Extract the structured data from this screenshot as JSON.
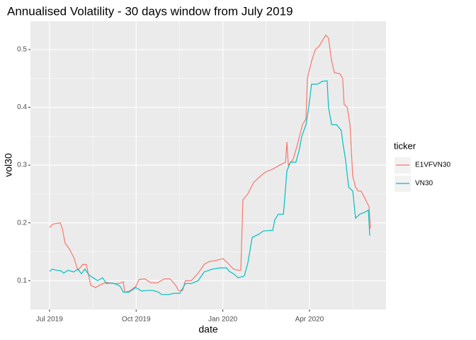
{
  "chart_data": {
    "type": "line",
    "title": "Annualised Volatility - 30 days window from July 2019",
    "x_label": "date",
    "y_label": "vol30",
    "legend_title": "ticker",
    "legend": "right",
    "grid": true,
    "xlim": [
      2019.445,
      2020.471
    ],
    "xticks": [
      {
        "value": 2019.5,
        "label": "Jul 2019"
      },
      {
        "value": 2019.75,
        "label": "Oct 2019"
      },
      {
        "value": 2020.0,
        "label": "Jan 2020"
      },
      {
        "value": 2020.25,
        "label": "Apr 2020"
      }
    ],
    "ylim": [
      0.05,
      0.549
    ],
    "yticks": [
      0.1,
      0.2,
      0.3,
      0.4,
      0.5
    ],
    "series": [
      {
        "name": "E1VFVN30",
        "color": "#F8766D",
        "x": [
          2019.5,
          2019.51,
          2019.531,
          2019.537,
          2019.545,
          2019.557,
          2019.57,
          2019.582,
          2019.596,
          2019.606,
          2019.619,
          2019.633,
          2019.647,
          2019.664,
          2019.684,
          2019.7,
          2019.713,
          2019.717,
          2019.731,
          2019.749,
          2019.758,
          2019.776,
          2019.79,
          2019.811,
          2019.831,
          2019.848,
          2019.864,
          2019.872,
          2019.884,
          2019.892,
          2019.909,
          2019.929,
          2019.946,
          2019.96,
          2019.98,
          2020.001,
          2020.015,
          2020.031,
          2020.044,
          2020.052,
          2020.058,
          2020.072,
          2020.089,
          2020.103,
          2020.123,
          2020.144,
          2020.164,
          2020.181,
          2020.185,
          2020.189,
          2020.203,
          2020.215,
          2020.23,
          2020.24,
          2020.244,
          2020.256,
          2020.267,
          2020.277,
          2020.287,
          2020.297,
          2020.305,
          2020.314,
          2020.322,
          2020.338,
          2020.346,
          2020.35,
          2020.359,
          2020.367,
          2020.375,
          2020.383,
          2020.391,
          2020.399,
          2020.408,
          2020.416,
          2020.422,
          2020.426
        ],
        "values": [
          0.192,
          0.198,
          0.2,
          0.19,
          0.165,
          0.155,
          0.14,
          0.118,
          0.128,
          0.128,
          0.092,
          0.088,
          0.093,
          0.097,
          0.095,
          0.095,
          0.098,
          0.08,
          0.082,
          0.09,
          0.102,
          0.103,
          0.097,
          0.096,
          0.103,
          0.103,
          0.092,
          0.083,
          0.083,
          0.1,
          0.1,
          0.113,
          0.128,
          0.133,
          0.135,
          0.138,
          0.13,
          0.12,
          0.118,
          0.118,
          0.24,
          0.25,
          0.27,
          0.278,
          0.288,
          0.293,
          0.3,
          0.305,
          0.34,
          0.3,
          0.31,
          0.335,
          0.37,
          0.38,
          0.45,
          0.48,
          0.5,
          0.505,
          0.515,
          0.525,
          0.52,
          0.48,
          0.46,
          0.458,
          0.45,
          0.405,
          0.4,
          0.37,
          0.28,
          0.262,
          0.255,
          0.255,
          0.245,
          0.235,
          0.228,
          0.19
        ]
      },
      {
        "name": "VN30",
        "color": "#00BFC4",
        "x": [
          2019.5,
          2019.508,
          2019.52,
          2019.533,
          2019.541,
          2019.553,
          2019.57,
          2019.582,
          2019.592,
          2019.602,
          2019.614,
          2019.623,
          2019.639,
          2019.653,
          2019.664,
          2019.68,
          2019.696,
          2019.704,
          2019.713,
          2019.729,
          2019.749,
          2019.766,
          2019.782,
          2019.798,
          2019.815,
          2019.823,
          2019.843,
          2019.86,
          2019.876,
          2019.892,
          2019.909,
          2019.929,
          2019.946,
          2019.97,
          2019.991,
          2020.011,
          2020.019,
          2020.031,
          2020.044,
          2020.062,
          2020.072,
          2020.085,
          2020.103,
          2020.117,
          2020.144,
          2020.15,
          2020.16,
          2020.175,
          2020.185,
          2020.195,
          2020.211,
          2020.22,
          2020.228,
          2020.24,
          2020.248,
          2020.256,
          2020.273,
          2020.287,
          2020.301,
          2020.305,
          2020.314,
          2020.328,
          2020.342,
          2020.346,
          2020.354,
          2020.363,
          2020.375,
          2020.383,
          2020.395,
          2020.408,
          2020.42,
          2020.424
        ],
        "values": [
          0.116,
          0.12,
          0.118,
          0.117,
          0.113,
          0.118,
          0.115,
          0.12,
          0.112,
          0.12,
          0.11,
          0.106,
          0.1,
          0.105,
          0.095,
          0.096,
          0.093,
          0.09,
          0.08,
          0.08,
          0.088,
          0.082,
          0.083,
          0.083,
          0.08,
          0.076,
          0.076,
          0.078,
          0.078,
          0.095,
          0.095,
          0.1,
          0.115,
          0.12,
          0.122,
          0.122,
          0.116,
          0.112,
          0.105,
          0.108,
          0.13,
          0.175,
          0.18,
          0.186,
          0.187,
          0.205,
          0.215,
          0.215,
          0.29,
          0.305,
          0.305,
          0.325,
          0.35,
          0.37,
          0.4,
          0.44,
          0.44,
          0.445,
          0.446,
          0.4,
          0.37,
          0.37,
          0.36,
          0.34,
          0.31,
          0.262,
          0.255,
          0.208,
          0.215,
          0.218,
          0.222,
          0.178
        ]
      }
    ]
  }
}
